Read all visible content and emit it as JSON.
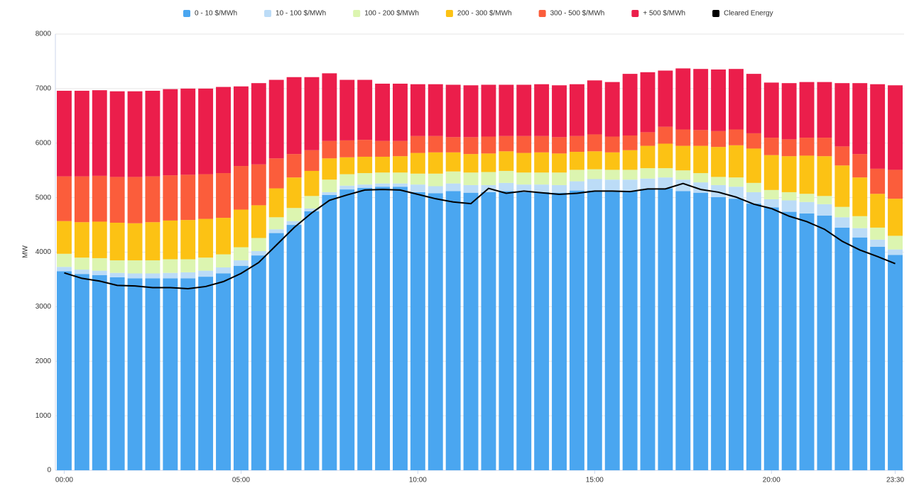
{
  "chart_data": {
    "type": "bar",
    "stacked": true,
    "y_label": "MW",
    "categories": [
      "00:00",
      null,
      null,
      null,
      null,
      null,
      null,
      null,
      null,
      null,
      "05:00",
      null,
      null,
      null,
      null,
      null,
      null,
      null,
      null,
      null,
      "10:00",
      null,
      null,
      null,
      null,
      null,
      null,
      null,
      null,
      null,
      "15:00",
      null,
      null,
      null,
      null,
      null,
      null,
      null,
      null,
      null,
      "20:00",
      null,
      null,
      null,
      null,
      null,
      null,
      "23:30"
    ],
    "ylim": [
      0,
      8000
    ],
    "yticks": [
      0,
      1000,
      2000,
      3000,
      4000,
      5000,
      6000,
      7000,
      8000
    ],
    "grid": true,
    "legend": "top",
    "series": [
      {
        "name": "0 - 10 $/MWh",
        "color": "#4aa6f0",
        "values": [
          3650,
          3600,
          3580,
          3540,
          3520,
          3520,
          3520,
          3520,
          3550,
          3610,
          3750,
          3940,
          4350,
          4500,
          4750,
          5050,
          5150,
          5180,
          5200,
          5200,
          5100,
          5080,
          5120,
          5090,
          5100,
          5120,
          5100,
          5100,
          5090,
          5130,
          5130,
          5110,
          5120,
          5160,
          5170,
          5120,
          5090,
          5010,
          4980,
          4890,
          4820,
          4740,
          4710,
          4670,
          4450,
          4270,
          4100,
          3950
        ]
      },
      {
        "name": "10 - 100 $/MWh",
        "color": "#bcdcf7",
        "values": [
          80,
          80,
          80,
          80,
          90,
          90,
          100,
          110,
          110,
          110,
          100,
          80,
          70,
          70,
          50,
          50,
          70,
          60,
          60,
          60,
          140,
          130,
          140,
          140,
          130,
          150,
          140,
          140,
          140,
          170,
          210,
          220,
          210,
          190,
          200,
          210,
          190,
          220,
          220,
          210,
          150,
          210,
          210,
          210,
          190,
          170,
          130,
          100
        ]
      },
      {
        "name": "100 - 200 $/MWh",
        "color": "#dcf5b0",
        "values": [
          240,
          220,
          230,
          230,
          240,
          240,
          250,
          240,
          240,
          240,
          240,
          240,
          220,
          240,
          230,
          230,
          210,
          210,
          200,
          200,
          200,
          230,
          220,
          230,
          240,
          220,
          220,
          220,
          230,
          210,
          180,
          180,
          180,
          190,
          170,
          170,
          170,
          150,
          170,
          170,
          170,
          150,
          150,
          150,
          190,
          220,
          220,
          250
        ]
      },
      {
        "name": "200 - 300 $/MWh",
        "color": "#fcc214",
        "values": [
          600,
          650,
          670,
          690,
          680,
          700,
          710,
          720,
          710,
          670,
          690,
          600,
          530,
          560,
          460,
          390,
          310,
          300,
          290,
          300,
          380,
          390,
          350,
          340,
          340,
          360,
          360,
          370,
          350,
          330,
          330,
          320,
          360,
          410,
          450,
          450,
          500,
          550,
          590,
          630,
          640,
          660,
          700,
          730,
          760,
          710,
          620,
          680
        ]
      },
      {
        "name": "300 - 500 $/MWh",
        "color": "#fb5d3b",
        "values": [
          820,
          840,
          840,
          840,
          850,
          840,
          830,
          830,
          820,
          820,
          800,
          750,
          550,
          430,
          380,
          320,
          310,
          310,
          290,
          280,
          310,
          300,
          280,
          310,
          310,
          280,
          310,
          300,
          300,
          290,
          310,
          290,
          270,
          250,
          310,
          300,
          290,
          290,
          290,
          280,
          320,
          310,
          330,
          340,
          350,
          430,
          460,
          530
        ]
      },
      {
        "name": "+ 500 $/MWh",
        "color": "#eb1e4b",
        "values": [
          1570,
          1570,
          1570,
          1570,
          1570,
          1570,
          1580,
          1580,
          1570,
          1580,
          1460,
          1490,
          1440,
          1410,
          1340,
          1240,
          1110,
          1100,
          1050,
          1050,
          950,
          950,
          960,
          950,
          950,
          940,
          940,
          950,
          950,
          950,
          990,
          1000,
          1130,
          1100,
          1030,
          1120,
          1120,
          1130,
          1110,
          1090,
          1010,
          1030,
          1020,
          1020,
          1160,
          1300,
          1550,
          1550
        ]
      },
      {
        "name": "Cleared Energy",
        "color": "#000000",
        "type": "line",
        "values": [
          3620,
          3520,
          3470,
          3390,
          3380,
          3350,
          3350,
          3330,
          3370,
          3460,
          3610,
          3810,
          4130,
          4450,
          4720,
          4950,
          5050,
          5140,
          5150,
          5140,
          5060,
          4980,
          4920,
          4890,
          5170,
          5080,
          5120,
          5090,
          5060,
          5080,
          5120,
          5120,
          5110,
          5160,
          5160,
          5260,
          5150,
          5100,
          5010,
          4880,
          4800,
          4660,
          4560,
          4420,
          4200,
          4040,
          3920,
          3790
        ]
      }
    ]
  }
}
